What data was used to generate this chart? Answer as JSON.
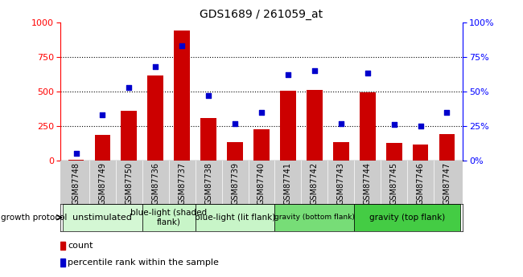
{
  "title": "GDS1689 / 261059_at",
  "samples": [
    "GSM87748",
    "GSM87749",
    "GSM87750",
    "GSM87736",
    "GSM87737",
    "GSM87738",
    "GSM87739",
    "GSM87740",
    "GSM87741",
    "GSM87742",
    "GSM87743",
    "GSM87744",
    "GSM87745",
    "GSM87746",
    "GSM87747"
  ],
  "counts": [
    5,
    185,
    360,
    615,
    940,
    310,
    135,
    225,
    505,
    510,
    135,
    495,
    130,
    115,
    190
  ],
  "percentiles": [
    5,
    33,
    53,
    68,
    83,
    47,
    27,
    35,
    62,
    65,
    27,
    63,
    26,
    25,
    35
  ],
  "groups": [
    {
      "label": "unstimulated",
      "start": 0,
      "end": 3,
      "color": "#d4f7d4"
    },
    {
      "label": "blue-light (shaded\nflank)",
      "start": 3,
      "end": 5,
      "color": "#c8f5c8"
    },
    {
      "label": "blue-light (lit flank)",
      "start": 5,
      "end": 8,
      "color": "#c8f5c8"
    },
    {
      "label": "gravity (bottom flank)",
      "start": 8,
      "end": 11,
      "color": "#77dd77"
    },
    {
      "label": "gravity (top flank)",
      "start": 11,
      "end": 15,
      "color": "#44cc44"
    }
  ],
  "ylim_left": [
    0,
    1000
  ],
  "ylim_right": [
    0,
    100
  ],
  "bar_color": "#cc0000",
  "scatter_color": "#0000cc",
  "yticks_left": [
    0,
    250,
    500,
    750,
    1000
  ],
  "yticks_right": [
    0,
    25,
    50,
    75,
    100
  ],
  "xtick_bg": "#cccccc",
  "group_label_left": "growth protocol",
  "legend_items": [
    {
      "color": "#cc0000",
      "label": "count"
    },
    {
      "color": "#0000cc",
      "label": "percentile rank within the sample"
    }
  ]
}
